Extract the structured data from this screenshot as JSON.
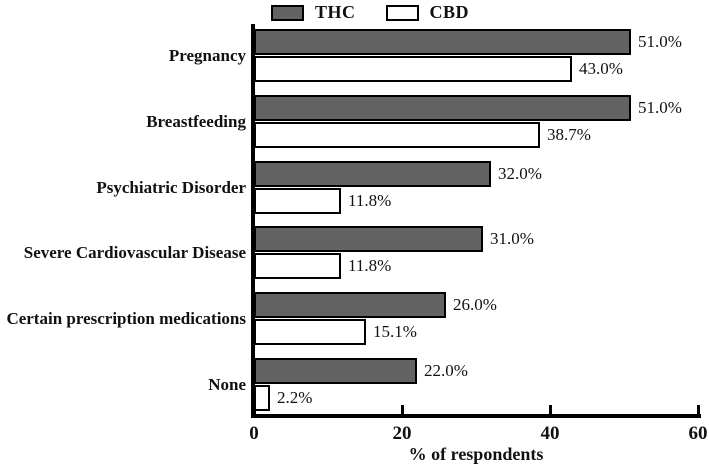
{
  "chart_data": {
    "type": "bar",
    "orientation": "horizontal",
    "title": "",
    "categories": [
      "Pregnancy",
      "Breastfeeding",
      "Psychiatric Disorder",
      "Severe Cardiovascular Disease",
      "Certain prescription medications",
      "None"
    ],
    "series": [
      {
        "name": "THC",
        "color": "#636363",
        "values": [
          51.0,
          51.0,
          32.0,
          31.0,
          26.0,
          22.0
        ],
        "labels": [
          "51.0%",
          "51.0%",
          "32.0%",
          "31.0%",
          "26.0%",
          "22.0%"
        ]
      },
      {
        "name": "CBD",
        "color": "#ffffff",
        "values": [
          43.0,
          38.7,
          11.8,
          11.8,
          15.1,
          2.2
        ],
        "labels": [
          "43.0%",
          "38.7%",
          "11.8%",
          "11.8%",
          "15.1%",
          "2.2%"
        ]
      }
    ],
    "xlabel": "% of respondents",
    "ylabel": "",
    "xlim": [
      0,
      60
    ],
    "x_ticks": [
      0,
      20,
      40,
      60
    ],
    "legend_position": "top-center",
    "grid": false,
    "axis_color": "#000000"
  }
}
